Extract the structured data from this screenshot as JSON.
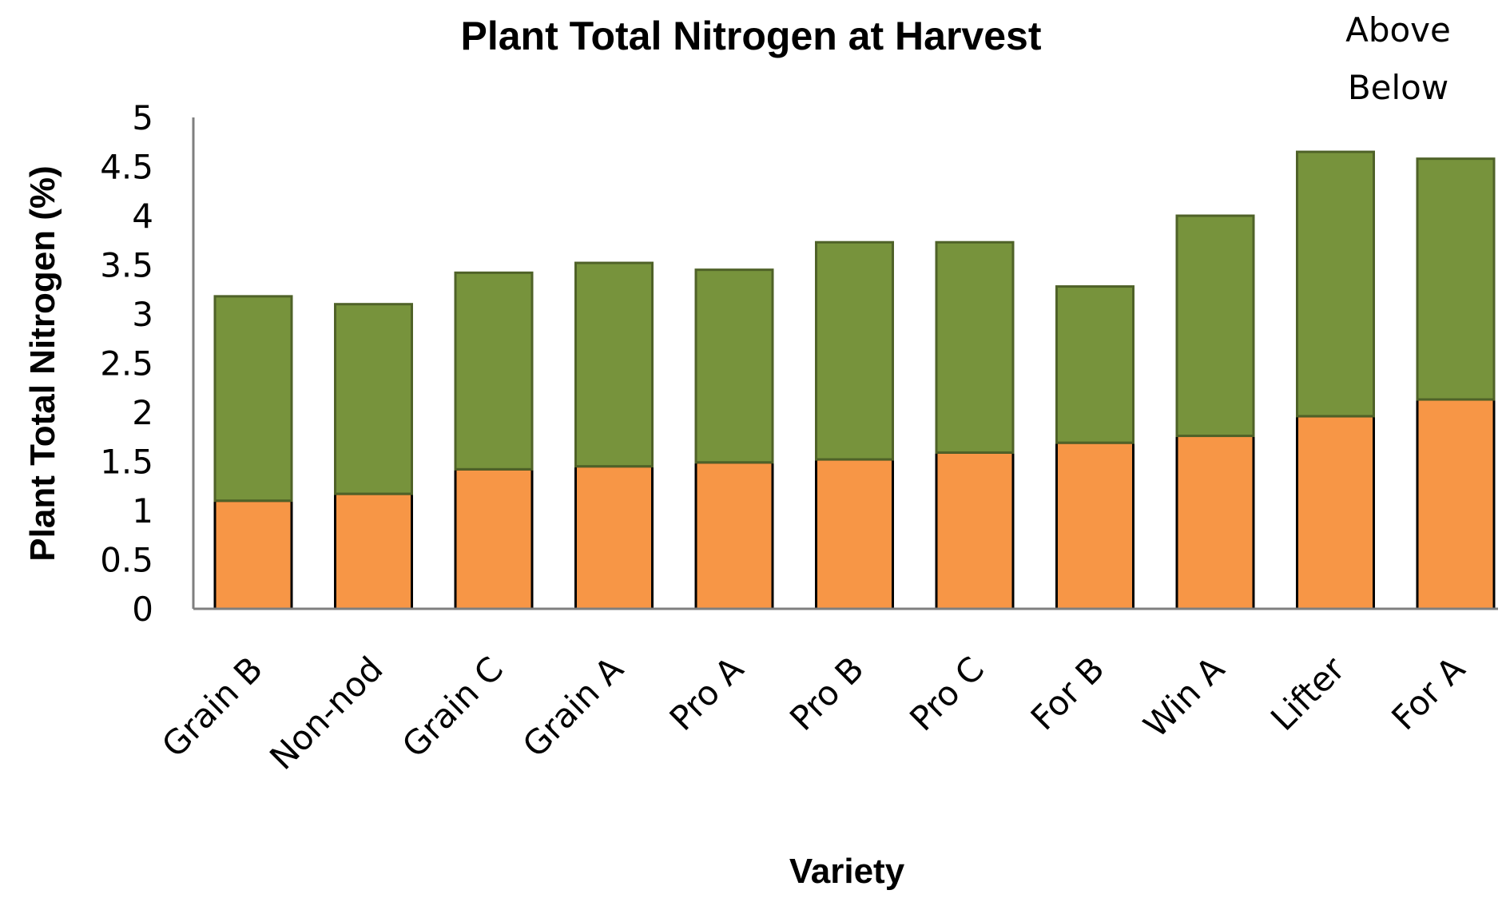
{
  "chart_data": {
    "type": "bar",
    "stacked": true,
    "title": "Plant Total Nitrogen at Harvest",
    "xlabel": "Variety",
    "ylabel": "Plant Total Nitrogen (%)",
    "ylim": [
      0,
      5
    ],
    "yticks": [
      "0",
      "0.5",
      "1",
      "1.5",
      "2",
      "2.5",
      "3",
      "3.5",
      "4",
      "4.5",
      "5"
    ],
    "grid": false,
    "legend_position": "top-right",
    "categories": [
      "Grain B",
      "Non-nod",
      "Grain C",
      "Grain A",
      "Pro A",
      "Pro B",
      "Pro C",
      "For B",
      "Win A",
      "Lifter",
      "For A"
    ],
    "series": [
      {
        "name": "Below",
        "color": "#F79646",
        "values": [
          1.1,
          1.17,
          1.42,
          1.45,
          1.49,
          1.52,
          1.59,
          1.69,
          1.76,
          1.96,
          2.13
        ]
      },
      {
        "name": "Above",
        "color": "#77933C",
        "values": [
          2.08,
          1.93,
          2.0,
          2.07,
          1.96,
          2.21,
          2.14,
          1.59,
          2.24,
          2.69,
          2.45
        ]
      }
    ]
  }
}
